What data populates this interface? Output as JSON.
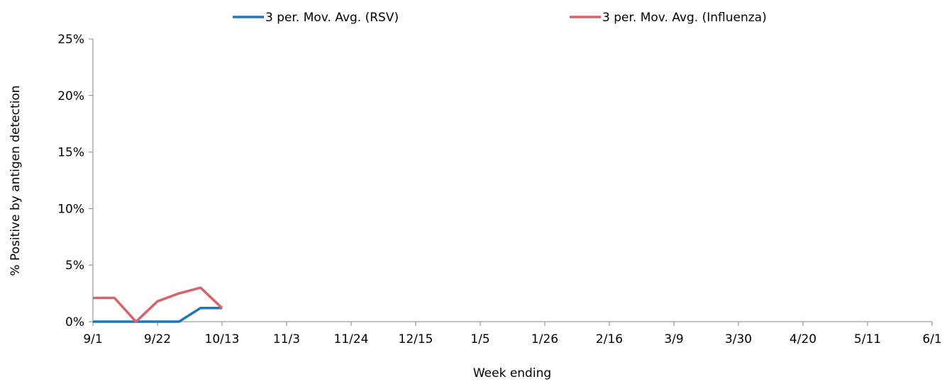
{
  "chart_data": {
    "type": "line",
    "xlabel": "Week ending",
    "ylabel": "% Positive by antigen detection",
    "ylim": [
      0,
      25
    ],
    "yticks": [
      0,
      5,
      10,
      15,
      20,
      25
    ],
    "ytick_labels": [
      "0%",
      "5%",
      "10%",
      "15%",
      "20%",
      "25%"
    ],
    "xticks": [
      "9/1",
      "9/22",
      "10/13",
      "11/3",
      "11/24",
      "12/15",
      "1/5",
      "1/26",
      "2/16",
      "3/9",
      "3/30",
      "4/20",
      "5/11",
      "6/1"
    ],
    "weeks_per_tick": 3,
    "grid": false,
    "legend_position": "top",
    "series": [
      {
        "name": "3 per. Mov. Avg. (RSV)",
        "color": "#1f77b4",
        "weeks": [
          "9/1",
          "9/8",
          "9/15",
          "9/22",
          "9/29",
          "10/6",
          "10/13"
        ],
        "values": [
          0,
          0,
          0,
          0,
          0,
          1.2,
          1.2
        ]
      },
      {
        "name": "3 per. Mov. Avg. (Influenza)",
        "color": "#d9626a",
        "weeks": [
          "9/1",
          "9/8",
          "9/15",
          "9/22",
          "9/29",
          "10/6",
          "10/13"
        ],
        "values": [
          2.1,
          2.1,
          0,
          1.8,
          2.5,
          3.0,
          1.2
        ]
      }
    ]
  }
}
